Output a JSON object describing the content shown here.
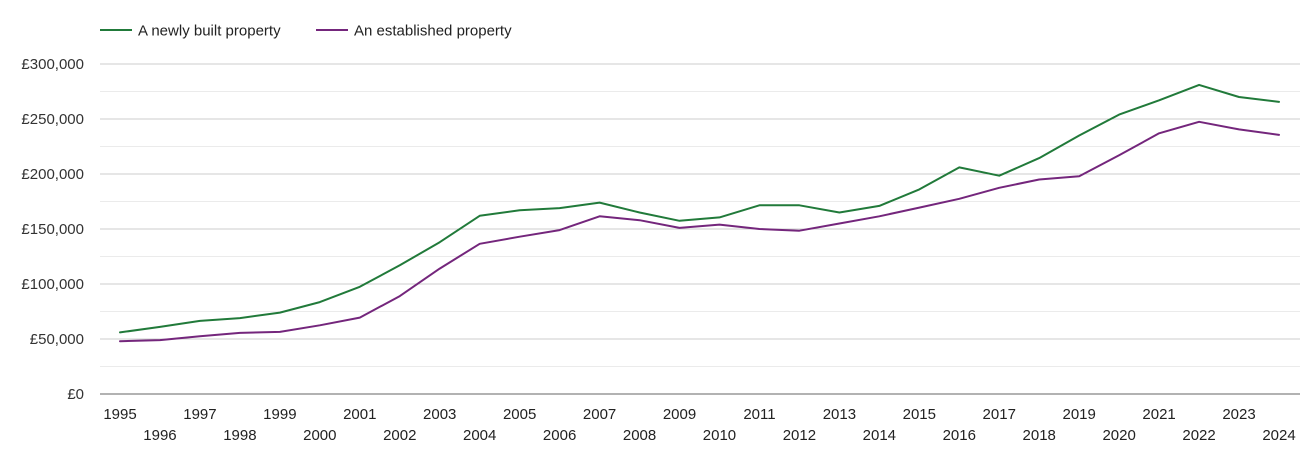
{
  "chart_data": {
    "type": "line",
    "title": "",
    "xlabel": "",
    "ylabel": "",
    "x": [
      1995,
      1996,
      1997,
      1998,
      1999,
      2000,
      2001,
      2002,
      2003,
      2004,
      2005,
      2006,
      2007,
      2008,
      2009,
      2010,
      2011,
      2012,
      2013,
      2014,
      2015,
      2016,
      2017,
      2018,
      2019,
      2020,
      2021,
      2022,
      2023,
      2024
    ],
    "x_tick_labels": [
      "1995",
      "1996",
      "1997",
      "1998",
      "1999",
      "2000",
      "2001",
      "2002",
      "2003",
      "2004",
      "2005",
      "2006",
      "2007",
      "2008",
      "2009",
      "2010",
      "2011",
      "2012",
      "2013",
      "2014",
      "2015",
      "2016",
      "2017",
      "2018",
      "2019",
      "2020",
      "2021",
      "2022",
      "2023",
      "2024"
    ],
    "ylim": [
      0,
      300000
    ],
    "y_ticks": [
      0,
      50000,
      100000,
      150000,
      200000,
      250000,
      300000
    ],
    "y_tick_labels": [
      "£0",
      "£50,000",
      "£100,000",
      "£150,000",
      "£200,000",
      "£250,000",
      "£300,000"
    ],
    "grid": true,
    "legend_position": "top-left",
    "series": [
      {
        "name": "A newly built property",
        "color": "#217a3a",
        "values": [
          56000,
          61000,
          66500,
          69000,
          74000,
          83500,
          97500,
          117000,
          138000,
          162000,
          167000,
          169000,
          174000,
          165000,
          157500,
          160500,
          171500,
          171500,
          165000,
          171000,
          186000,
          206000,
          198500,
          214500,
          235000,
          254000,
          267000,
          281000,
          270000,
          265500
        ]
      },
      {
        "name": "An established property",
        "color": "#74267c",
        "values": [
          48000,
          49000,
          52500,
          55500,
          56500,
          62500,
          69500,
          89000,
          114000,
          136500,
          143000,
          149000,
          161500,
          158000,
          151000,
          154000,
          150000,
          148500,
          155000,
          161500,
          169500,
          177500,
          187500,
          195000,
          198000,
          217000,
          237000,
          247500,
          240500,
          235500
        ]
      }
    ]
  }
}
